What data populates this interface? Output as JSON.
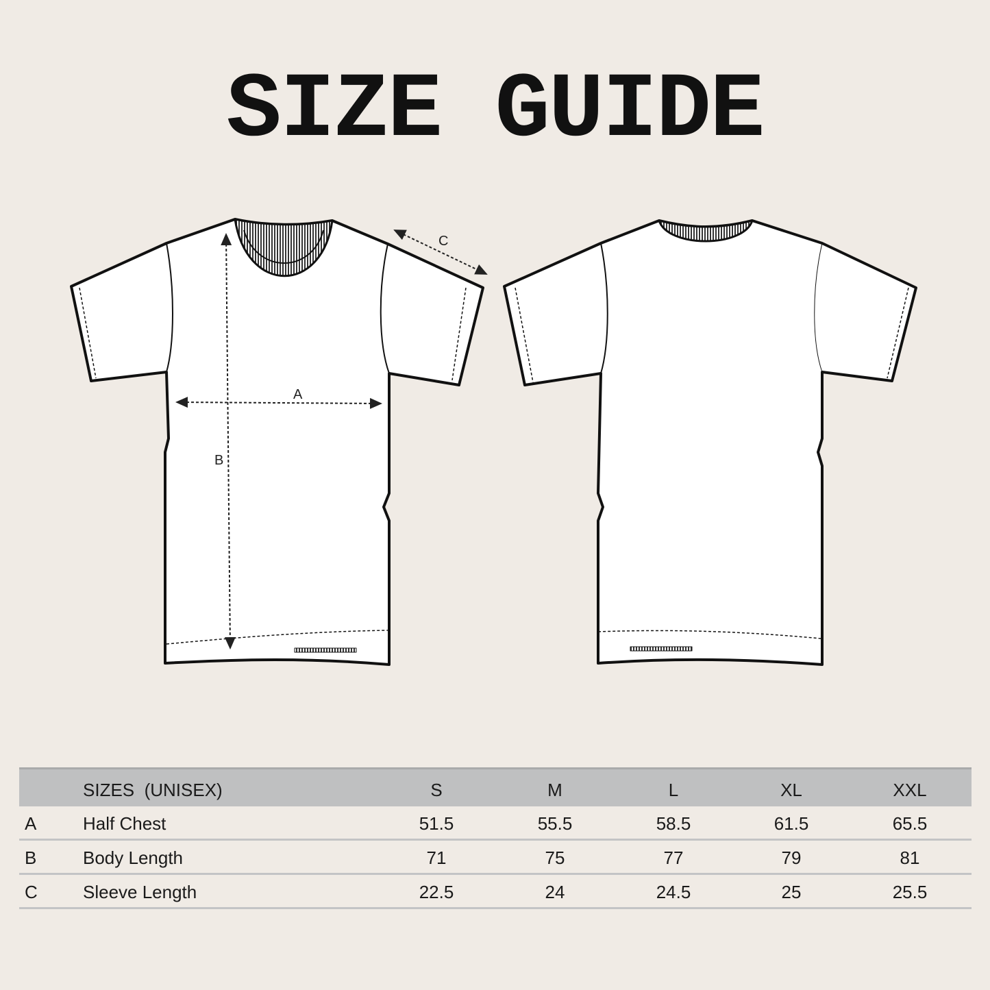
{
  "title": "SIZE GUIDE",
  "diagram_labels": {
    "a": "A",
    "b": "B",
    "c": "C"
  },
  "table": {
    "header_label": "SIZES  (UNISEX)",
    "sizes": [
      "S",
      "M",
      "L",
      "XL",
      "XXL"
    ],
    "rows": [
      {
        "letter": "A",
        "label": "Half Chest",
        "values": [
          "51.5",
          "55.5",
          "58.5",
          "61.5",
          "65.5"
        ]
      },
      {
        "letter": "B",
        "label": "Body Length",
        "values": [
          "71",
          "75",
          "77",
          "79",
          "81"
        ]
      },
      {
        "letter": "C",
        "label": "Sleeve Length",
        "values": [
          "22.5",
          "24",
          "24.5",
          "25",
          "25.5"
        ]
      }
    ]
  },
  "colors": {
    "background": "#f0ebe5",
    "header_band": "#bfc0c1"
  }
}
